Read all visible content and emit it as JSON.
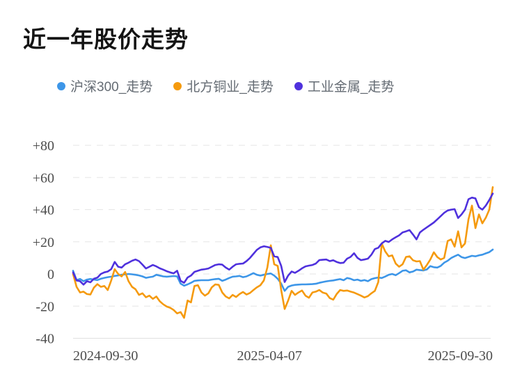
{
  "title": "近一年股价走势",
  "chart_data": {
    "type": "line",
    "title": "近一年股价走势",
    "legend_position": "top",
    "x_axis": {
      "ticks": [
        {
          "label": "2024-09-30",
          "frac": 0,
          "anchor": "start"
        },
        {
          "label": "2025-04-07",
          "frac": 0.468,
          "anchor": "middle"
        },
        {
          "label": "2025-09-30",
          "frac": 1,
          "anchor": "end"
        }
      ],
      "range": [
        "2024-09-30",
        "2025-09-30"
      ]
    },
    "y_axis": {
      "unit": "percent_change",
      "ylim": [
        -40,
        80
      ],
      "grid": "dashed-horizontal",
      "ticks": [
        {
          "value": 80,
          "label": "+80"
        },
        {
          "value": 60,
          "label": "+60"
        },
        {
          "value": 40,
          "label": "+40"
        },
        {
          "value": 20,
          "label": "+20"
        },
        {
          "value": 0,
          "label": "0"
        },
        {
          "value": -20,
          "label": "-20"
        },
        {
          "value": -40,
          "label": "-40"
        }
      ]
    },
    "series": [
      {
        "name": "沪深300_走势",
        "color": "#3d96e8",
        "values": [
          2,
          -3.8,
          -3.1,
          -4.5,
          -3.5,
          -3.1,
          -3.5,
          -3.8,
          -3,
          -2.4,
          -2,
          -1.7,
          -1.2,
          -0.9,
          -0.5,
          -0.2,
          0,
          -0.2,
          -0.5,
          -0.9,
          -1.5,
          -2.4,
          -2,
          -1.7,
          -0.5,
          -1,
          -1.5,
          -1.7,
          -1.5,
          -1.3,
          -1.5,
          -6,
          -7.3,
          -6.5,
          -5.5,
          -4.3,
          -4,
          -3.9,
          -3.9,
          -3.9,
          -3.5,
          -3.2,
          -3,
          -4.3,
          -3.5,
          -2.5,
          -1.7,
          -1.5,
          -1.2,
          -2,
          -1.5,
          -0.5,
          0.5,
          -0.5,
          -1,
          -0.5,
          0,
          0.3,
          -1,
          -3,
          -6,
          -10.5,
          -8,
          -7.2,
          -6.8,
          -6.6,
          -6.5,
          -6.5,
          -6.4,
          -6.3,
          -6.1,
          -5.5,
          -5,
          -4.6,
          -4.3,
          -4,
          -3.6,
          -3.2,
          -3.9,
          -2.5,
          -3,
          -3.9,
          -3.5,
          -4.3,
          -3.8,
          -4.5,
          -3.2,
          -2.6,
          -2.2,
          -2.5,
          -1.6,
          -0.5,
          0,
          -0.8,
          0.5,
          2,
          2.3,
          1,
          1.5,
          2.7,
          2.4,
          2.2,
          2.8,
          4.9,
          4.2,
          4,
          5,
          7,
          8.2,
          9.9,
          11,
          12,
          10.5,
          9.9,
          10.6,
          11.3,
          11,
          11.6,
          12,
          12.8,
          13.6,
          15.2
        ]
      },
      {
        "name": "北方铜业_走势",
        "color": "#f59a0e",
        "values": [
          0,
          -8,
          -11.5,
          -11,
          -12.5,
          -12.8,
          -8.5,
          -6.3,
          -8,
          -7.5,
          -10,
          -4,
          3,
          0,
          -1.5,
          1.2,
          -4.5,
          -8,
          -9.5,
          -13,
          -12,
          -14.5,
          -13.5,
          -15.5,
          -14,
          -17,
          -18.9,
          -20.3,
          -21,
          -22.4,
          -24.5,
          -23.7,
          -27.3,
          -16.5,
          -17.7,
          -7.5,
          -7,
          -11.5,
          -13.5,
          -12,
          -8.3,
          -6.5,
          -6.8,
          -11.5,
          -14,
          -15.2,
          -13,
          -14.3,
          -12.5,
          -11.2,
          -12.8,
          -11.8,
          -10,
          -8.3,
          -7,
          -4,
          4,
          17.8,
          6,
          5,
          -10,
          -21.8,
          -16.5,
          -10.5,
          -13,
          -11.5,
          -10.3,
          -13.5,
          -14.8,
          -11.5,
          -11,
          -10,
          -11.6,
          -12.2,
          -15,
          -16,
          -12.5,
          -10,
          -10.5,
          -10.3,
          -11,
          -11.6,
          -12.5,
          -13.5,
          -14.6,
          -13.8,
          -12,
          -10.5,
          -5,
          18.9,
          14,
          11,
          11.6,
          6.5,
          4.5,
          6,
          10.6,
          11,
          8.5,
          7.8,
          8,
          2.7,
          5.6,
          9,
          13.5,
          10.5,
          9,
          10,
          20.5,
          21.5,
          17,
          26.5,
          16.5,
          19,
          34,
          42.5,
          28.5,
          37,
          31.5,
          35,
          40,
          54
        ]
      },
      {
        "name": "工业金属_走势",
        "color": "#4f31dd",
        "values": [
          1,
          -4,
          -4.5,
          -6.6,
          -4.5,
          -5.2,
          -3,
          -2.3,
          0,
          1,
          1.5,
          3,
          7.5,
          4.5,
          4,
          6,
          7,
          8.2,
          9,
          8,
          5.8,
          3.4,
          4.5,
          5.6,
          4.7,
          3.5,
          2.7,
          1.7,
          1,
          0.4,
          2,
          -4.3,
          -5.5,
          -2.2,
          -1,
          1.3,
          2,
          2.7,
          3,
          3.4,
          4.5,
          5.6,
          6,
          5.8,
          4,
          2.7,
          4.5,
          6,
          6.3,
          6.5,
          8,
          10,
          12.5,
          15,
          16.5,
          17.2,
          16.8,
          16.2,
          11,
          10.5,
          5,
          -5,
          -1,
          1.5,
          0.7,
          2,
          3.5,
          4.7,
          5.2,
          5.6,
          6.5,
          8.6,
          8.8,
          9,
          8,
          8.5,
          7.5,
          6.8,
          7,
          9.5,
          10.6,
          12.9,
          10,
          8.6,
          9,
          9.5,
          12,
          15.5,
          16.3,
          19,
          20.6,
          19.9,
          21.5,
          22.8,
          24,
          25.8,
          26.5,
          27.3,
          24.5,
          21.5,
          25.8,
          27.5,
          29,
          30.5,
          32,
          34,
          36,
          38,
          39.5,
          40,
          40.3,
          34.8,
          37,
          40,
          46.5,
          47.5,
          47,
          41.5,
          40,
          42.5,
          46,
          50
        ]
      }
    ]
  }
}
